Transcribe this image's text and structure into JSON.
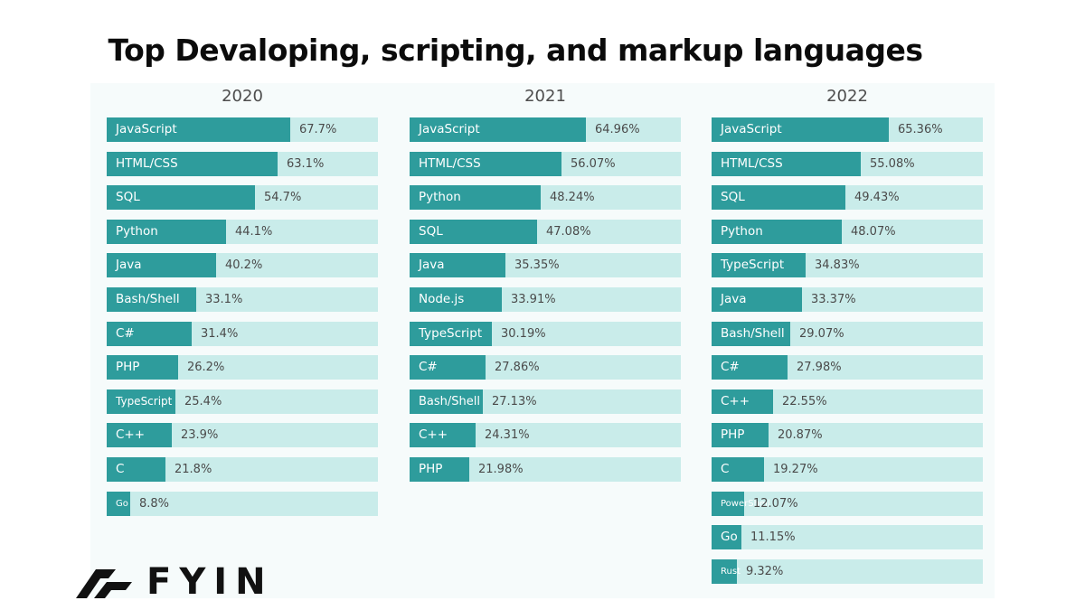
{
  "title": "Top Devaloping, scripting, and markup languages",
  "brand": {
    "name": "FYIN"
  },
  "colors": {
    "bar_fill": "#2e9c9c",
    "bar_track": "#c9ecea",
    "title": "#0b0b0b"
  },
  "chart_data": [
    {
      "type": "bar",
      "orientation": "horizontal",
      "title": "2020",
      "xlim": [
        0,
        100
      ],
      "categories": [
        "JavaScript",
        "HTML/CSS",
        "SQL",
        "Python",
        "Java",
        "Bash/Shell",
        "C#",
        "PHP",
        "TypeScript",
        "C++",
        "C",
        "Go"
      ],
      "values": [
        67.7,
        63.1,
        54.7,
        44.1,
        40.2,
        33.1,
        31.4,
        26.2,
        25.4,
        23.9,
        21.8,
        8.8
      ],
      "value_labels": [
        "67.7%",
        "63.1%",
        "54.7%",
        "44.1%",
        "40.2%",
        "33.1%",
        "31.4%",
        "26.2%",
        "25.4%",
        "23.9%",
        "21.8%",
        "8.8%"
      ]
    },
    {
      "type": "bar",
      "orientation": "horizontal",
      "title": "2021",
      "xlim": [
        0,
        100
      ],
      "categories": [
        "JavaScript",
        "HTML/CSS",
        "Python",
        "SQL",
        "Java",
        "Node.js",
        "TypeScript",
        "C#",
        "Bash/Shell",
        "C++",
        "PHP"
      ],
      "values": [
        64.96,
        56.07,
        48.24,
        47.08,
        35.35,
        33.91,
        30.19,
        27.86,
        27.13,
        24.31,
        21.98
      ],
      "value_labels": [
        "64.96%",
        "56.07%",
        "48.24%",
        "47.08%",
        "35.35%",
        "33.91%",
        "30.19%",
        "27.86%",
        "27.13%",
        "24.31%",
        "21.98%"
      ]
    },
    {
      "type": "bar",
      "orientation": "horizontal",
      "title": "2022",
      "xlim": [
        0,
        100
      ],
      "categories": [
        "JavaScript",
        "HTML/CSS",
        "SQL",
        "Python",
        "TypeScript",
        "Java",
        "Bash/Shell",
        "C#",
        "C++",
        "PHP",
        "C",
        "PowerShell",
        "Go",
        "Rust"
      ],
      "values": [
        65.36,
        55.08,
        49.43,
        48.07,
        34.83,
        33.37,
        29.07,
        27.98,
        22.55,
        20.87,
        19.27,
        12.07,
        11.15,
        9.32
      ],
      "value_labels": [
        "65.36%",
        "55.08%",
        "49.43%",
        "48.07%",
        "34.83%",
        "33.37%",
        "29.07%",
        "27.98%",
        "22.55%",
        "20.87%",
        "19.27%",
        "12.07%",
        "11.15%",
        "9.32%"
      ]
    }
  ]
}
